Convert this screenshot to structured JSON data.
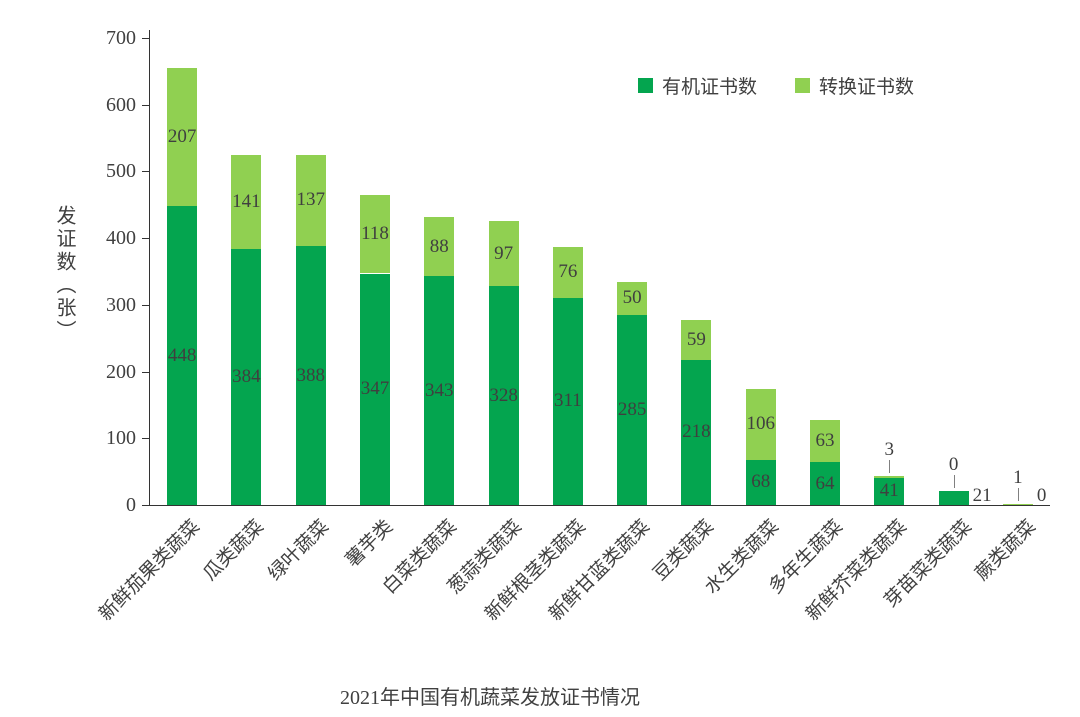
{
  "chart_data": {
    "type": "bar",
    "stacked": true,
    "title": "2021年中国有机蔬菜发放证书情况",
    "ylabel": "发证数（张）",
    "xlabel": "",
    "ylim": [
      0,
      700
    ],
    "ytick_step": 100,
    "grid": false,
    "legend_position": "top-right",
    "axis_color": "#333333",
    "label_color": "#3f3f3f",
    "leader_line_color": "#808080",
    "categories": [
      "新鲜茄果类蔬菜",
      "瓜类蔬菜",
      "绿叶蔬菜",
      "薯芋类",
      "白菜类蔬菜",
      "葱蒜类蔬菜",
      "新鲜根茎类蔬菜",
      "新鲜甘蓝类蔬菜",
      "豆类蔬菜",
      "水生类蔬菜",
      "多年生蔬菜",
      "新鲜芥菜类蔬菜",
      "芽苗菜类蔬菜",
      "蕨类蔬菜"
    ],
    "series": [
      {
        "name": "有机证书数",
        "color": "#04a54f",
        "values": [
          448,
          384,
          388,
          347,
          343,
          328,
          311,
          285,
          218,
          68,
          64,
          41,
          21,
          0
        ]
      },
      {
        "name": "转换证书数",
        "color": "#90d051",
        "values": [
          207,
          141,
          137,
          118,
          88,
          97,
          76,
          50,
          59,
          106,
          63,
          3,
          0,
          1
        ]
      }
    ]
  }
}
